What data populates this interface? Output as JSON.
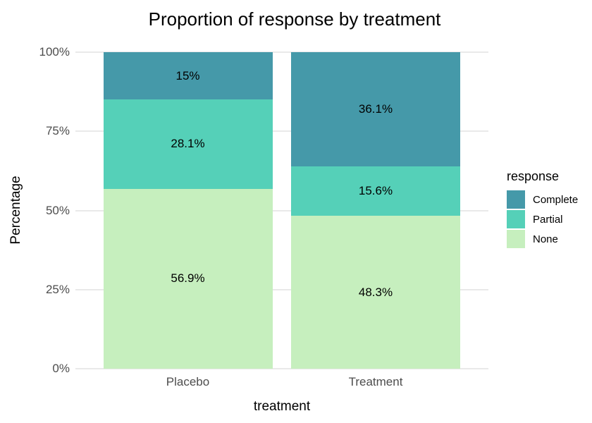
{
  "chart_data": {
    "type": "bar",
    "stacked": true,
    "title": "Proportion of response by treatment",
    "xlabel": "treatment",
    "ylabel": "Percentage",
    "categories": [
      "Placebo",
      "Treatment"
    ],
    "series": [
      {
        "name": "Complete",
        "values": [
          15,
          36.1
        ],
        "labels": [
          "15%",
          "36.1%"
        ],
        "color": "#4599a9"
      },
      {
        "name": "Partial",
        "values": [
          28.1,
          15.6
        ],
        "labels": [
          "28.1%",
          "15.6%"
        ],
        "color": "#55d0b8"
      },
      {
        "name": "None",
        "values": [
          56.9,
          48.3
        ],
        "labels": [
          "56.9%",
          "48.3%"
        ],
        "color": "#c6efbe"
      }
    ],
    "ylim": [
      0,
      100
    ],
    "yticks": [
      0,
      25,
      50,
      75,
      100
    ],
    "ytick_labels": [
      "0%",
      "25%",
      "50%",
      "75%",
      "100%"
    ],
    "grid": "major-horizontal",
    "legend": {
      "title": "response",
      "position": "right"
    }
  },
  "colors": {
    "grid": "#e9e9e9",
    "axis_text": "#4d4d4d",
    "text": "#000000",
    "background": "#ffffff"
  }
}
